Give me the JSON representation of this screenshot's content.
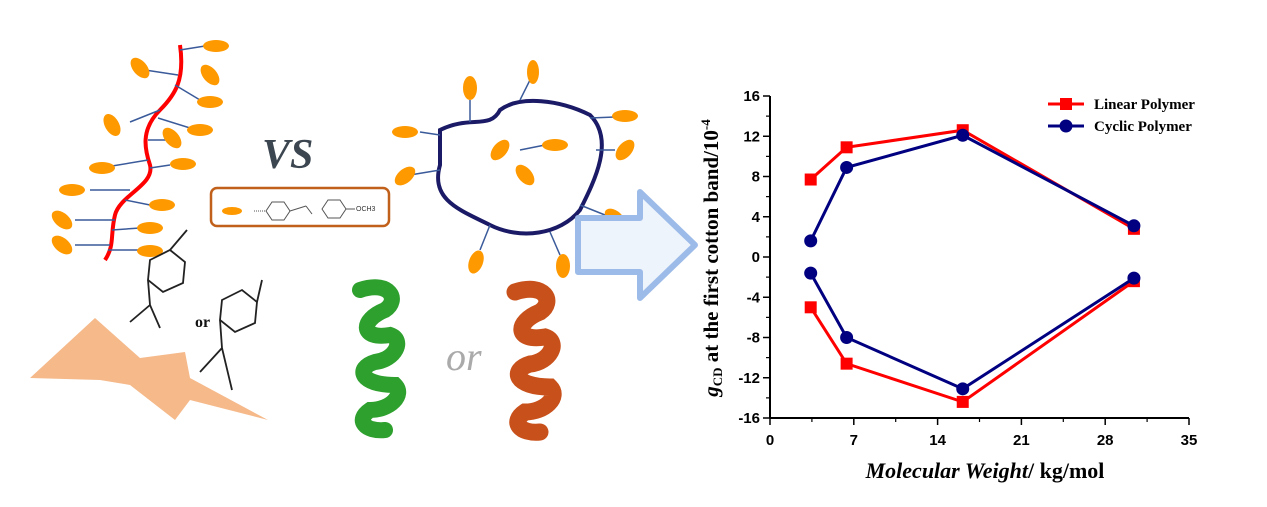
{
  "illustration": {
    "vs_label": "VS",
    "or_label_small": "or",
    "or_label_large": "or",
    "substituent_label": "OCH3",
    "colors": {
      "linear_chain": "#ff0000",
      "cyclic_chain": "#1a1a66",
      "mesogen": "#ff9900",
      "box_border": "#c0601a",
      "lightning": "#f5b98a",
      "arrow": "#9dbbe8",
      "helix_left": "#2ea02e",
      "helix_right": "#c8501a"
    }
  },
  "chart_data": {
    "type": "line",
    "title": "",
    "xlabel": "Molecular Weight/ kg/mol",
    "xlabel_italic": "Molecular Weight",
    "xlabel_unit": "/ kg/mol",
    "ylabel_prefix": "g",
    "ylabel_sub": "CD",
    "ylabel_rest": " at the first cotton band/10",
    "ylabel_sup": "-4",
    "xlim": [
      0,
      35
    ],
    "ylim": [
      -16,
      16
    ],
    "xticks": [
      "0",
      "7",
      "14",
      "21",
      "28",
      "35"
    ],
    "yticks": [
      "16",
      "12",
      "8",
      "4",
      "0",
      "-4",
      "-8",
      "-12",
      "-16"
    ],
    "legend_position": "top-right",
    "series": [
      {
        "name": "Linear Polymer",
        "color": "#ff0000",
        "marker": "square",
        "x": [
          3.4,
          6.4,
          16.1,
          30.4
        ],
        "positive": [
          7.7,
          10.9,
          12.6,
          2.8
        ],
        "negative": [
          -5.0,
          -10.6,
          -14.4,
          -2.4
        ]
      },
      {
        "name": "Cyclic Polymer",
        "color": "#000080",
        "marker": "circle",
        "x": [
          3.4,
          6.4,
          16.1,
          30.4
        ],
        "positive": [
          1.6,
          8.9,
          12.1,
          3.1
        ],
        "negative": [
          -1.6,
          -8.0,
          -13.1,
          -2.1
        ]
      }
    ]
  }
}
